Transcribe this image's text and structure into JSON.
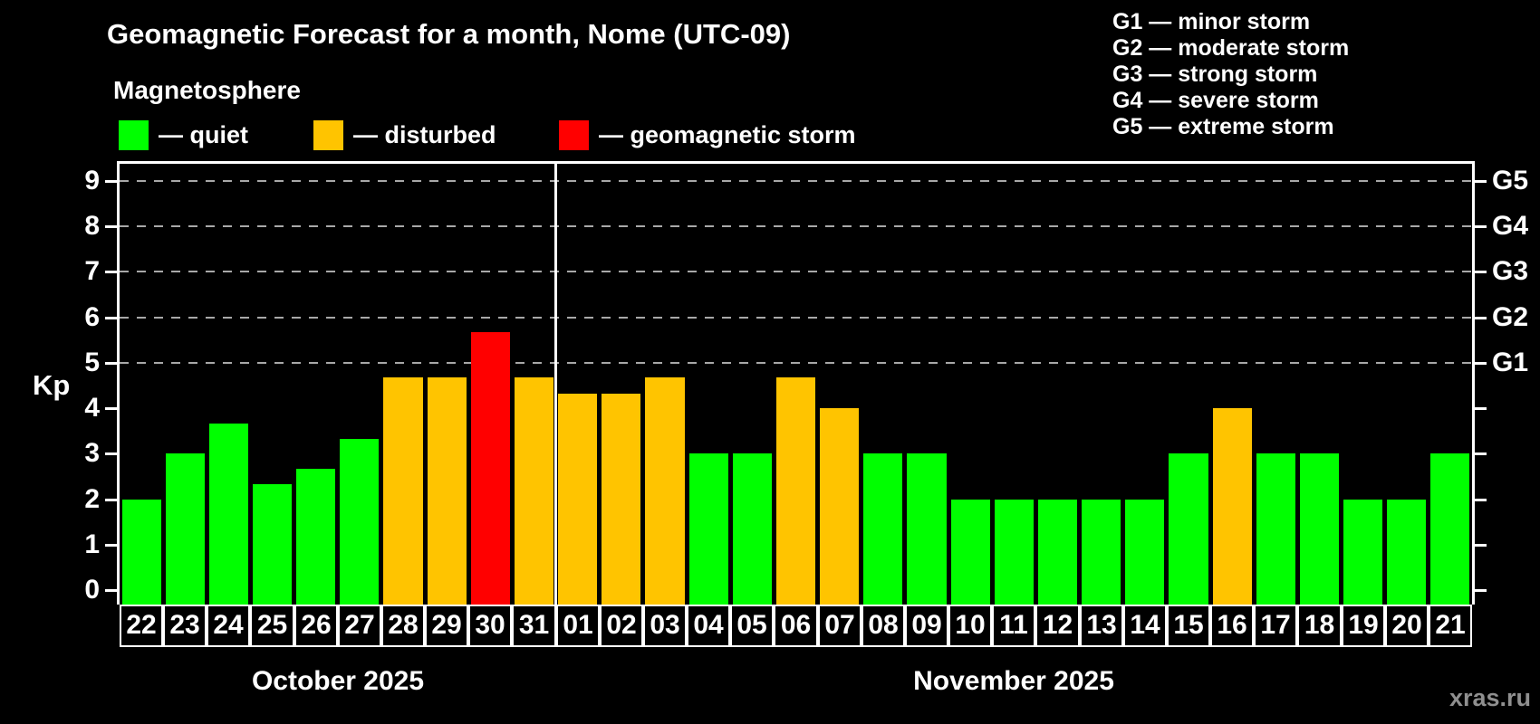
{
  "header": {
    "title": "Geomagnetic Forecast for a month, Nome (UTC-09)",
    "subtitle": "Magnetosphere"
  },
  "legend": {
    "items": [
      {
        "id": "quiet",
        "label": "— quiet",
        "color": "#00ff00"
      },
      {
        "id": "disturbed",
        "label": "— disturbed",
        "color": "#ffc400"
      },
      {
        "id": "storm",
        "label": "— geomagnetic storm",
        "color": "#ff0000"
      }
    ]
  },
  "storm_scale_legend": {
    "items": [
      "G1 — minor storm",
      "G2 — moderate storm",
      "G3 — strong storm",
      "G4 — severe storm",
      "G5 — extreme storm"
    ]
  },
  "watermark": "xras.ru",
  "chart_data": {
    "type": "bar",
    "title": "Geomagnetic Forecast for a month, Nome (UTC-09)",
    "ylabel": "Kp",
    "ylim": [
      -0.32,
      9.38
    ],
    "y_ticks": [
      0,
      1,
      2,
      3,
      4,
      5,
      6,
      7,
      8,
      9
    ],
    "gridlines_at": [
      5,
      6,
      7,
      8,
      9
    ],
    "grid": "dashed horizontal lines at storm levels only",
    "legend_position": "top-left",
    "right_axis": [
      {
        "kp": 5,
        "label": "G1"
      },
      {
        "kp": 6,
        "label": "G2"
      },
      {
        "kp": 7,
        "label": "G3"
      },
      {
        "kp": 8,
        "label": "G4"
      },
      {
        "kp": 9,
        "label": "G5"
      }
    ],
    "status_colors": {
      "quiet": "#00ff00",
      "disturbed": "#ffc400",
      "storm": "#ff0000"
    },
    "months": [
      {
        "label": "October 2025",
        "days": [
          {
            "day": "22",
            "kp": 2.0,
            "status": "quiet"
          },
          {
            "day": "23",
            "kp": 3.0,
            "status": "quiet"
          },
          {
            "day": "24",
            "kp": 3.67,
            "status": "quiet"
          },
          {
            "day": "25",
            "kp": 2.33,
            "status": "quiet"
          },
          {
            "day": "26",
            "kp": 2.67,
            "status": "quiet"
          },
          {
            "day": "27",
            "kp": 3.33,
            "status": "quiet"
          },
          {
            "day": "28",
            "kp": 4.67,
            "status": "disturbed"
          },
          {
            "day": "29",
            "kp": 4.67,
            "status": "disturbed"
          },
          {
            "day": "30",
            "kp": 5.67,
            "status": "storm"
          },
          {
            "day": "31",
            "kp": 4.67,
            "status": "disturbed"
          }
        ]
      },
      {
        "label": "November 2025",
        "days": [
          {
            "day": "01",
            "kp": 4.33,
            "status": "disturbed"
          },
          {
            "day": "02",
            "kp": 4.33,
            "status": "disturbed"
          },
          {
            "day": "03",
            "kp": 4.67,
            "status": "disturbed"
          },
          {
            "day": "04",
            "kp": 3.0,
            "status": "quiet"
          },
          {
            "day": "05",
            "kp": 3.0,
            "status": "quiet"
          },
          {
            "day": "06",
            "kp": 4.67,
            "status": "disturbed"
          },
          {
            "day": "07",
            "kp": 4.0,
            "status": "disturbed"
          },
          {
            "day": "08",
            "kp": 3.0,
            "status": "quiet"
          },
          {
            "day": "09",
            "kp": 3.0,
            "status": "quiet"
          },
          {
            "day": "10",
            "kp": 2.0,
            "status": "quiet"
          },
          {
            "day": "11",
            "kp": 2.0,
            "status": "quiet"
          },
          {
            "day": "12",
            "kp": 2.0,
            "status": "quiet"
          },
          {
            "day": "13",
            "kp": 2.0,
            "status": "quiet"
          },
          {
            "day": "14",
            "kp": 2.0,
            "status": "quiet"
          },
          {
            "day": "15",
            "kp": 3.0,
            "status": "quiet"
          },
          {
            "day": "16",
            "kp": 4.0,
            "status": "disturbed"
          },
          {
            "day": "17",
            "kp": 3.0,
            "status": "quiet"
          },
          {
            "day": "18",
            "kp": 3.0,
            "status": "quiet"
          },
          {
            "day": "19",
            "kp": 2.0,
            "status": "quiet"
          },
          {
            "day": "20",
            "kp": 2.0,
            "status": "quiet"
          },
          {
            "day": "21",
            "kp": 3.0,
            "status": "quiet"
          }
        ]
      }
    ]
  }
}
